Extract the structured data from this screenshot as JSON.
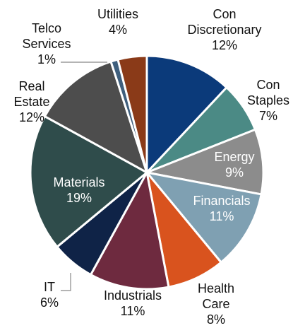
{
  "chart_data": {
    "type": "pie",
    "start_angle_deg": 0,
    "direction": "clockwise",
    "slices": [
      {
        "name": "Con Discretionary",
        "label_lines": [
          "Con",
          "Discretionary"
        ],
        "percent_label": "12%",
        "value": 12,
        "color": "#0b3a7a"
      },
      {
        "name": "Con Staples",
        "label_lines": [
          "Con",
          "Staples"
        ],
        "percent_label": "7%",
        "value": 7,
        "color": "#4b8a85"
      },
      {
        "name": "Energy",
        "label_lines": [
          "Energy"
        ],
        "percent_label": "9%",
        "value": 9,
        "color": "#8c8c8c"
      },
      {
        "name": "Financials",
        "label_lines": [
          "Financials"
        ],
        "percent_label": "11%",
        "value": 11,
        "color": "#7fa0b2"
      },
      {
        "name": "Health Care",
        "label_lines": [
          "Health",
          "Care"
        ],
        "percent_label": "8%",
        "value": 8,
        "color": "#d9531e"
      },
      {
        "name": "Industrials",
        "label_lines": [
          "Industrials"
        ],
        "percent_label": "11%",
        "value": 11,
        "color": "#6e2a3f"
      },
      {
        "name": "IT",
        "label_lines": [
          "IT"
        ],
        "percent_label": "6%",
        "value": 6,
        "color": "#0f2347"
      },
      {
        "name": "Materials",
        "label_lines": [
          "Materials"
        ],
        "percent_label": "19%",
        "value": 19,
        "color": "#2f4c4b"
      },
      {
        "name": "Real Estate",
        "label_lines": [
          "Real",
          "Estate"
        ],
        "percent_label": "12%",
        "value": 12,
        "color": "#4d4d4d"
      },
      {
        "name": "Telco Services",
        "label_lines": [
          "Telco",
          "Services"
        ],
        "percent_label": "1%",
        "value": 1,
        "color": "#3f5f7d"
      },
      {
        "name": "Utilities",
        "label_lines": [
          "Utilities"
        ],
        "percent_label": "4%",
        "value": 4,
        "color": "#8a3a18"
      }
    ]
  }
}
